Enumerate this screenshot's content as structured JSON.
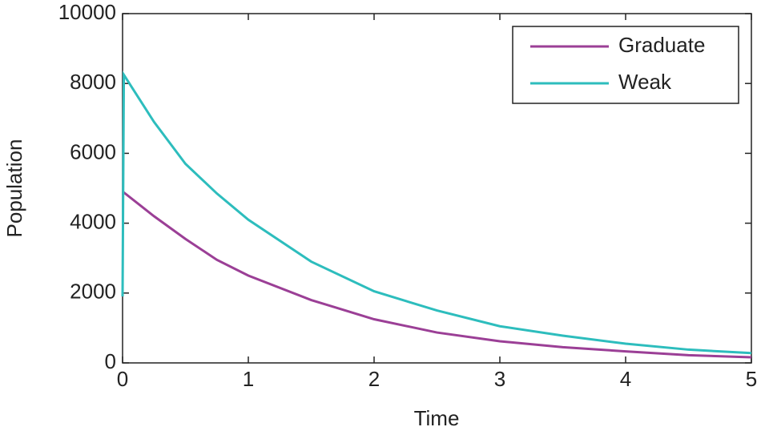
{
  "chart_data": {
    "type": "line",
    "x_label": "Time",
    "y_label": "Population",
    "x": [
      0,
      0.01,
      0.25,
      0.5,
      0.75,
      1,
      1.5,
      2,
      2.5,
      3,
      3.5,
      4,
      4.5,
      5
    ],
    "series": [
      {
        "name": "Graduate",
        "color": "#9b3f96",
        "values": [
          4900,
          4880,
          4200,
          3550,
          2950,
          2500,
          1800,
          1250,
          870,
          620,
          450,
          330,
          220,
          160
        ]
      },
      {
        "name": "Weak",
        "color": "#2dbdbd",
        "values": [
          1900,
          8250,
          6900,
          5700,
          4850,
          4100,
          2900,
          2050,
          1500,
          1050,
          780,
          550,
          380,
          280
        ]
      }
    ],
    "xlim": [
      0,
      5
    ],
    "xticks": [
      0,
      1,
      2,
      3,
      4,
      5
    ],
    "ylim": [
      0,
      10000
    ],
    "yticks": [
      0,
      2000,
      4000,
      6000,
      8000,
      10000
    ],
    "legend": "upper-right"
  }
}
